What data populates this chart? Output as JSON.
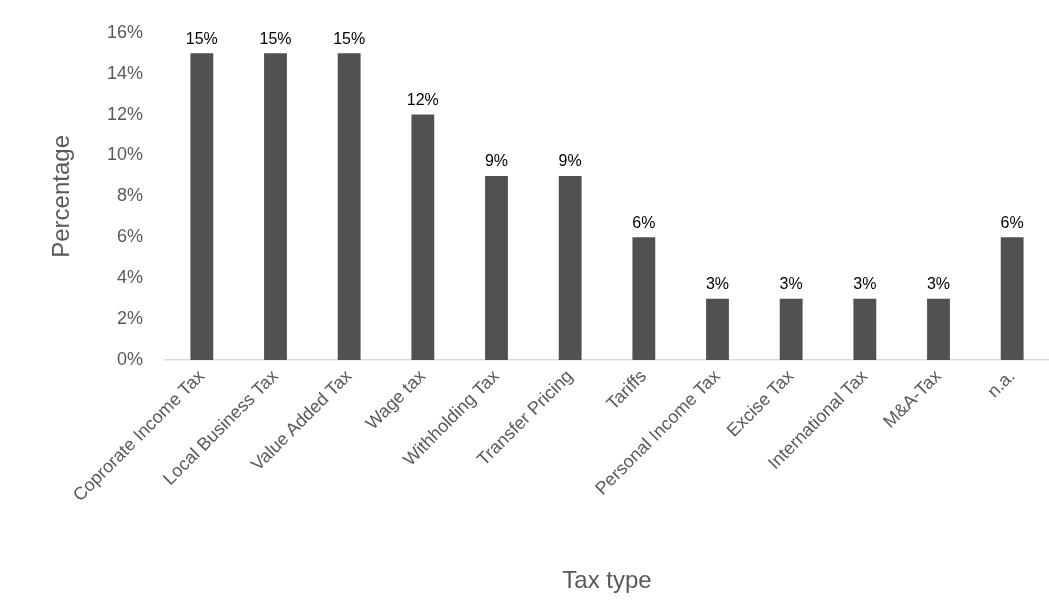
{
  "chart_data": {
    "type": "bar",
    "xlabel": "Tax type",
    "ylabel": "Percentage",
    "categories": [
      "Coprorate Income Tax",
      "Local Business Tax",
      "Value Added Tax",
      "Wage tax",
      "Withholding Tax",
      "Transfer Pricing",
      "Tariffs",
      "Personal Income Tax",
      "Excise Tax",
      "International Tax",
      "M&A-Tax",
      "n.a."
    ],
    "values": [
      15,
      15,
      15,
      12,
      9,
      9,
      6,
      3,
      3,
      3,
      3,
      6
    ],
    "value_labels": [
      "15%",
      "15%",
      "15%",
      "12%",
      "9%",
      "9%",
      "6%",
      "3%",
      "3%",
      "3%",
      "3%",
      "6%"
    ],
    "color": "#525050",
    "ylim": [
      0,
      16
    ],
    "yticks": [
      {
        "value": 0,
        "label": "0%"
      },
      {
        "value": 2,
        "label": "2%"
      },
      {
        "value": 4,
        "label": "4%"
      },
      {
        "value": 6,
        "label": "6%"
      },
      {
        "value": 8,
        "label": "8%"
      },
      {
        "value": 10,
        "label": "10%"
      },
      {
        "value": 12,
        "label": "12%"
      },
      {
        "value": 14,
        "label": "14%"
      },
      {
        "value": 16,
        "label": "16%"
      }
    ],
    "grid": false,
    "legend": false
  }
}
